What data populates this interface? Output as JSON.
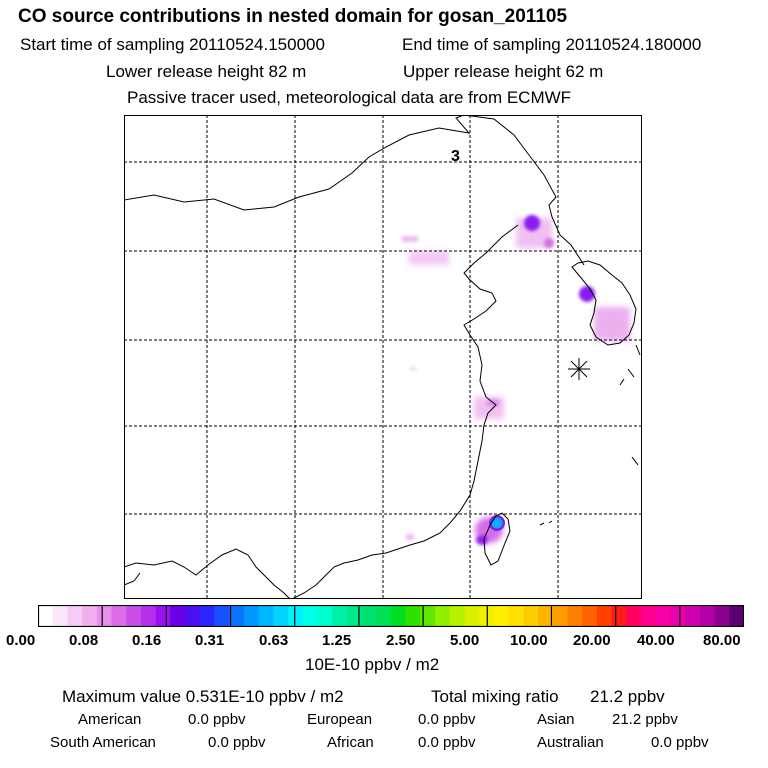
{
  "header": {
    "title": "CO  source contributions in nested domain for gosan_201105",
    "start_label": "Start time of sampling 20110524.150000",
    "end_label": "End time of sampling 20110524.180000",
    "lower_label": "Lower release height   82 m",
    "upper_label": "Upper release height   62 m",
    "tracer_note": "Passive tracer used, meteorological data are from ECMWF"
  },
  "map": {
    "panel_label": "3",
    "receptor_marker": "asterisk-icon"
  },
  "legend": {
    "ticks": [
      "0.00",
      "0.08",
      "0.16",
      "0.31",
      "0.63",
      "1.25",
      "2.50",
      "5.00",
      "10.00",
      "20.00",
      "40.00",
      "80.00"
    ],
    "units": "10E-10 ppbv / m2",
    "colors": [
      "#ffffff",
      "#fbe6fb",
      "#f6ccf6",
      "#f0b0f0",
      "#e890ec",
      "#dc6cea",
      "#c84ee8",
      "#b630ec",
      "#9a10f0",
      "#6a00e8",
      "#4a10f0",
      "#2a26ff",
      "#1a50ff",
      "#0a74ff",
      "#0098ff",
      "#00b8ff",
      "#00d4ff",
      "#00f0ff",
      "#00ffe8",
      "#00ffcc",
      "#00f0a8",
      "#00e88a",
      "#00e070",
      "#00e050",
      "#00e020",
      "#30e000",
      "#60e800",
      "#90f000",
      "#b8f000",
      "#d8f000",
      "#f0f000",
      "#fff000",
      "#ffe000",
      "#ffcc00",
      "#ffb400",
      "#ff9c00",
      "#ff8000",
      "#ff6400",
      "#ff4000",
      "#ff1a1a",
      "#ff0060",
      "#ff0090",
      "#f800a8",
      "#e800b0",
      "#d000b0",
      "#b400a8",
      "#8c0090",
      "#5a0070"
    ]
  },
  "footer": {
    "max_label": "Maximum value  0.531E-10 ppbv / m2",
    "total_label": "Total mixing ratio",
    "total_value": "21.2 ppbv",
    "american_label": "American",
    "american_value": "0.0 ppbv",
    "european_label": "European",
    "european_value": "0.0 ppbv",
    "asian_label": "Asian",
    "asian_value": "21.2 ppbv",
    "south_american_label": "South American",
    "south_american_value": "0.0 ppbv",
    "african_label": "African",
    "african_value": "0.0 ppbv",
    "australian_label": "Australian",
    "australian_value": "0.0 ppbv"
  }
}
